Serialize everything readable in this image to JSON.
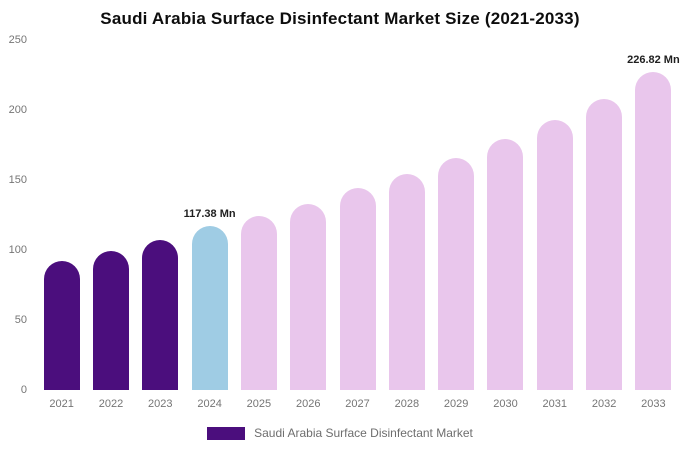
{
  "title": "Saudi Arabia Surface Disinfectant Market Size (2021-2033)",
  "chart_data": {
    "type": "bar",
    "title": "Saudi Arabia Surface Disinfectant Market Size (2021-2033)",
    "categories": [
      "2021",
      "2022",
      "2023",
      "2024",
      "2025",
      "2026",
      "2027",
      "2028",
      "2029",
      "2030",
      "2031",
      "2032",
      "2033"
    ],
    "values": [
      92,
      99,
      107,
      117.38,
      124,
      133,
      144,
      154,
      166,
      179,
      193,
      208,
      226.82
    ],
    "bar_colors": [
      "#4B0E7D",
      "#4B0E7D",
      "#4B0E7D",
      "#9FCCE4",
      "#E9C6EC",
      "#E9C6EC",
      "#E9C6EC",
      "#E9C6EC",
      "#E9C6EC",
      "#E9C6EC",
      "#E9C6EC",
      "#E9C6EC",
      "#E9C6EC"
    ],
    "xlabel": "",
    "ylabel": "",
    "ylim": [
      0,
      250
    ],
    "yticks": [
      0,
      50,
      100,
      150,
      200,
      250
    ],
    "grid": false,
    "legend_position": "bottom",
    "legend_label": "Saudi Arabia Surface Disinfectant Market",
    "legend_color": "#4B0E7D",
    "annotations": [
      {
        "category": "2024",
        "text": "117.38 Mn"
      },
      {
        "category": "2033",
        "text": "226.82 Mn"
      }
    ]
  }
}
